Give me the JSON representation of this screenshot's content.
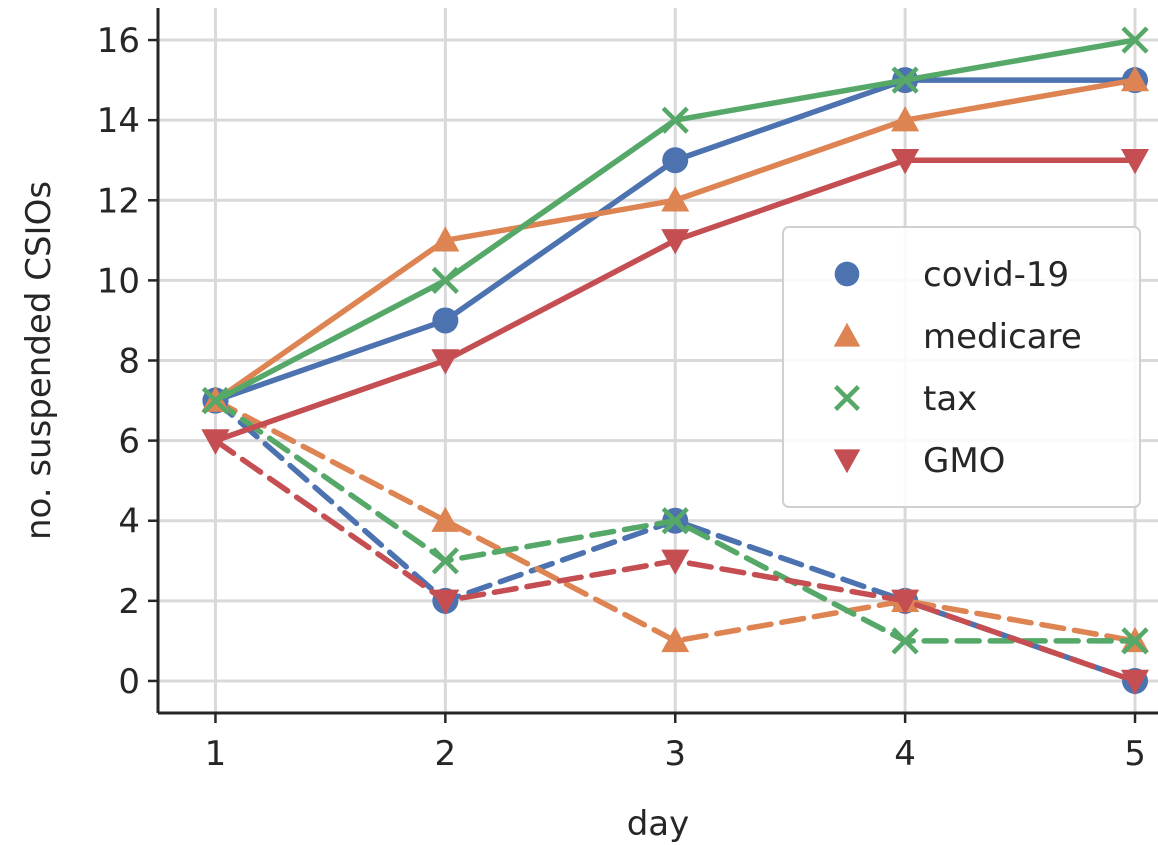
{
  "chart_data": {
    "type": "line",
    "title": "",
    "xlabel": "day",
    "ylabel": "no. suspended CSIOs",
    "x": [
      1,
      2,
      3,
      4,
      5
    ],
    "xticks": [
      1,
      2,
      3,
      4,
      5
    ],
    "yticks": [
      0,
      2,
      4,
      6,
      8,
      10,
      12,
      14,
      16
    ],
    "xlim": [
      0.75,
      5.1
    ],
    "ylim": [
      -0.8,
      16.8
    ],
    "grid": true,
    "legend_position": "center-right",
    "series": [
      {
        "name": "covid-19",
        "marker": "circle",
        "color": "#4c72b0",
        "linestyle": "solid",
        "values": [
          7,
          9,
          13,
          15,
          15
        ]
      },
      {
        "name": "medicare",
        "marker": "triangle-up",
        "color": "#dd8452",
        "linestyle": "solid",
        "values": [
          7,
          11,
          12,
          14,
          15
        ]
      },
      {
        "name": "tax",
        "marker": "x",
        "color": "#55a868",
        "linestyle": "solid",
        "values": [
          7,
          10,
          14,
          15,
          16
        ]
      },
      {
        "name": "GMO",
        "marker": "triangle-down",
        "color": "#c44e52",
        "linestyle": "solid",
        "values": [
          6,
          8,
          11,
          13,
          13
        ]
      },
      {
        "marker": "circle",
        "color": "#4c72b0",
        "linestyle": "dashed",
        "values": [
          7,
          2,
          4,
          2,
          0
        ]
      },
      {
        "marker": "triangle-up",
        "color": "#dd8452",
        "linestyle": "dashed",
        "values": [
          7,
          4,
          1,
          2,
          1
        ]
      },
      {
        "marker": "x",
        "color": "#55a868",
        "linestyle": "dashed",
        "values": [
          7,
          3,
          4,
          1,
          1
        ]
      },
      {
        "marker": "triangle-down",
        "color": "#c44e52",
        "linestyle": "dashed",
        "values": [
          6,
          2,
          3,
          2,
          0
        ]
      }
    ]
  }
}
